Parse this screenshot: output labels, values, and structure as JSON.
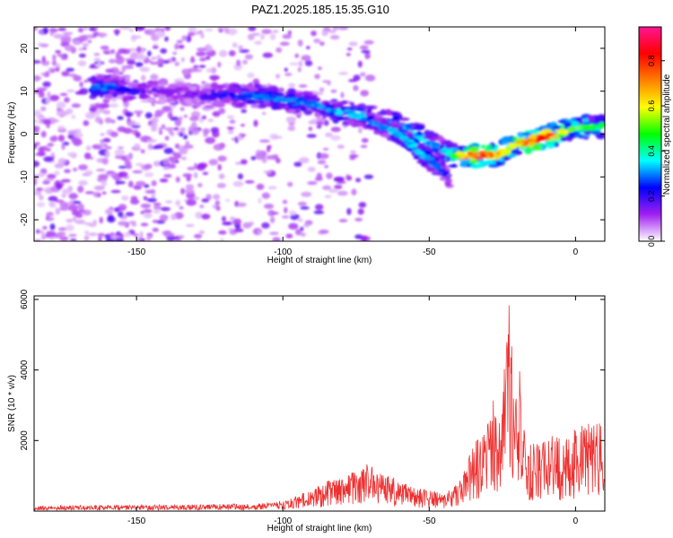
{
  "chart_title": "PAZ1.2025.185.15.35.G10",
  "chart_data": [
    {
      "type": "heatmap",
      "title": "PAZ1.2025.185.15.35.G10",
      "xlabel": "Height of straight line (km)",
      "ylabel": "Frequency (Hz)",
      "xlim": [
        -185,
        10
      ],
      "ylim": [
        -25,
        25
      ],
      "x_ticks": [
        -150,
        -100,
        -50,
        0
      ],
      "y_ticks": [
        -20,
        -10,
        0,
        10,
        20
      ],
      "colorbar": {
        "label": "Normalized spectral amplitude",
        "range": [
          0,
          0.95
        ],
        "ticks": [
          "0.0",
          "0.2",
          "0.4",
          "0.6",
          "0.8"
        ],
        "tick_values": [
          0.0,
          0.2,
          0.4,
          0.6,
          0.8
        ],
        "colors": [
          "#ffffff",
          "#a020f0",
          "#0000ff",
          "#00ffff",
          "#00ff00",
          "#ffff00",
          "#ff8000",
          "#ff0000",
          "#ff1493"
        ]
      },
      "ridge": {
        "x": [
          -160,
          -150,
          -140,
          -130,
          -120,
          -110,
          -100,
          -90,
          -80,
          -70,
          -60,
          -52,
          -47,
          -42,
          -38,
          -32,
          -27,
          -22,
          -17,
          -12,
          -7,
          -2,
          3,
          10
        ],
        "y": [
          11,
          10,
          10,
          9,
          9,
          9,
          8,
          7,
          5,
          4,
          2,
          -1,
          -3,
          -5,
          -5,
          -5,
          -5,
          -3,
          -2,
          -1,
          0,
          1,
          1.5,
          2
        ],
        "amplitude": [
          0.3,
          0.2,
          0.15,
          0.15,
          0.25,
          0.3,
          0.3,
          0.3,
          0.35,
          0.35,
          0.35,
          0.35,
          0.3,
          0.45,
          0.7,
          0.8,
          0.7,
          0.55,
          0.75,
          0.85,
          0.7,
          0.55,
          0.5,
          0.45
        ]
      },
      "branch": {
        "x": [
          -70,
          -60,
          -55,
          -52,
          -48,
          -45,
          -43
        ],
        "y": [
          3,
          0,
          -3,
          -5,
          -7,
          -9,
          -11
        ],
        "amplitude": [
          0.3,
          0.35,
          0.35,
          0.35,
          0.3,
          0.25,
          0.2
        ]
      }
    },
    {
      "type": "line",
      "xlabel": "Height of straight line (km)",
      "ylabel": "SNR (10 * v/v)",
      "xlim": [
        -185,
        10
      ],
      "ylim": [
        0,
        6100
      ],
      "x_ticks": [
        -150,
        -100,
        -50,
        0
      ],
      "y_ticks": [
        2000,
        4000,
        6000
      ],
      "line_color": "#ee3030",
      "envelope": {
        "x": [
          -185,
          -150,
          -110,
          -100,
          -95,
          -90,
          -85,
          -80,
          -75,
          -70,
          -65,
          -60,
          -55,
          -50,
          -45,
          -40,
          -37,
          -35,
          -32,
          -30,
          -28,
          -26,
          -25,
          -24,
          -23,
          -22,
          -21,
          -20,
          -19,
          -18,
          -17,
          -16,
          -15,
          -13,
          -10,
          -8,
          -5,
          -3,
          0,
          2,
          5,
          7,
          10
        ],
        "y": [
          150,
          170,
          200,
          280,
          450,
          600,
          800,
          1000,
          1150,
          1300,
          1050,
          800,
          700,
          600,
          500,
          800,
          1400,
          1900,
          2200,
          2700,
          3000,
          2600,
          3200,
          4500,
          6000,
          5500,
          3500,
          3500,
          4600,
          3400,
          1300,
          1800,
          1900,
          1950,
          2000,
          2100,
          2050,
          2200,
          2300,
          2400,
          2450,
          2500,
          2500
        ]
      }
    }
  ]
}
